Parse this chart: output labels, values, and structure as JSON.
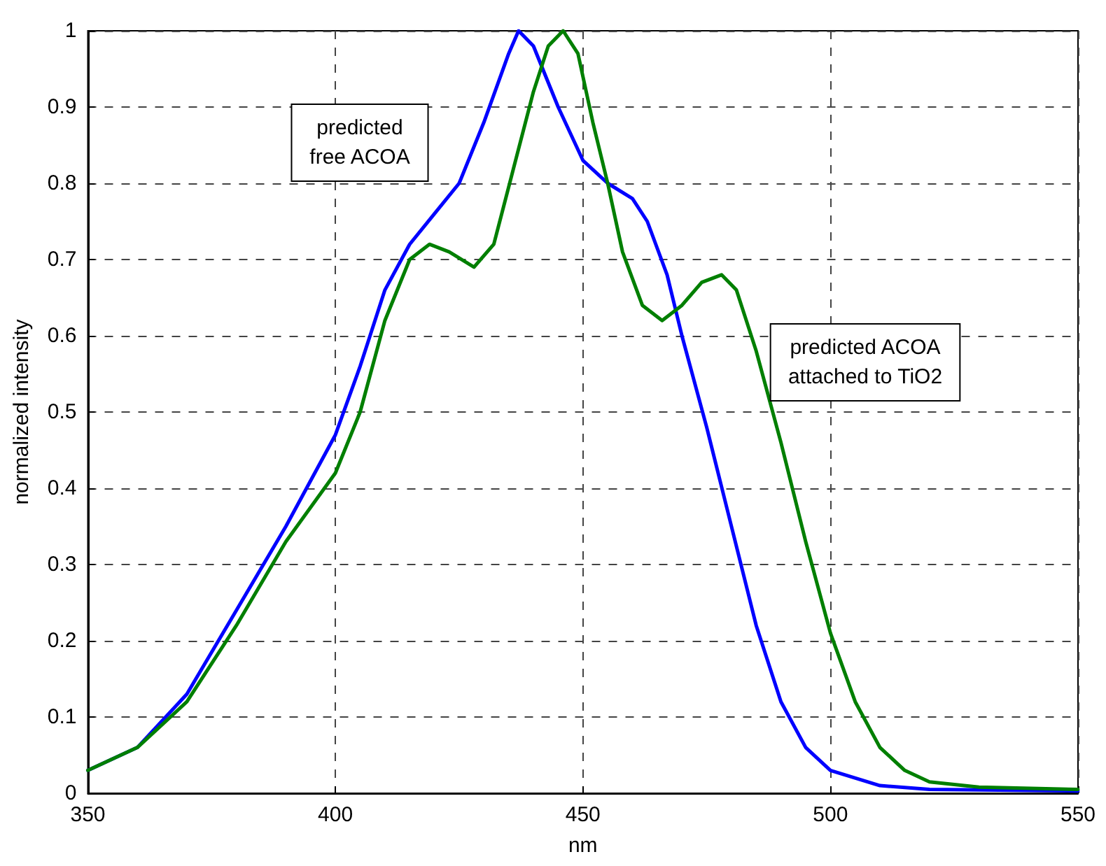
{
  "chart_data": {
    "type": "line",
    "xlabel": "nm",
    "ylabel": "normalized intensity",
    "xlim": [
      350,
      550
    ],
    "xticks": [
      350,
      400,
      450,
      500,
      550
    ],
    "ylim": [
      0,
      1
    ],
    "yticks": [
      0,
      0.1,
      0.2,
      0.3,
      0.4,
      0.5,
      0.6,
      0.7,
      0.8,
      0.9,
      1
    ],
    "grid": true,
    "marker": "none",
    "line_style": "solid",
    "series": [
      {
        "color": "#0000ff",
        "x": [
          350,
          360,
          370,
          380,
          390,
          400,
          405,
          410,
          415,
          420,
          425,
          430,
          435,
          437,
          440,
          445,
          450,
          455,
          460,
          463,
          467,
          470,
          475,
          480,
          485,
          490,
          495,
          500,
          510,
          520,
          550
        ],
        "values": [
          0.03,
          0.06,
          0.13,
          0.24,
          0.35,
          0.47,
          0.56,
          0.66,
          0.72,
          0.76,
          0.8,
          0.88,
          0.97,
          1.0,
          0.98,
          0.9,
          0.83,
          0.8,
          0.78,
          0.75,
          0.68,
          0.6,
          0.48,
          0.35,
          0.22,
          0.12,
          0.06,
          0.03,
          0.01,
          0.005,
          0.003
        ]
      },
      {
        "color": "#007f00",
        "x": [
          350,
          360,
          370,
          380,
          390,
          400,
          405,
          410,
          415,
          419,
          423,
          428,
          432,
          436,
          440,
          443,
          446,
          449,
          452,
          455,
          458,
          462,
          466,
          470,
          474,
          478,
          481,
          485,
          490,
          495,
          500,
          505,
          510,
          515,
          520,
          530,
          550
        ],
        "values": [
          0.03,
          0.06,
          0.12,
          0.22,
          0.33,
          0.42,
          0.5,
          0.62,
          0.7,
          0.72,
          0.71,
          0.69,
          0.72,
          0.82,
          0.92,
          0.98,
          1.0,
          0.97,
          0.88,
          0.8,
          0.71,
          0.64,
          0.62,
          0.64,
          0.67,
          0.68,
          0.66,
          0.58,
          0.46,
          0.33,
          0.21,
          0.12,
          0.06,
          0.03,
          0.015,
          0.008,
          0.005
        ]
      }
    ],
    "annotations": [
      "predicted\nfree ACOA",
      "predicted ACOA\nattached to TiO2"
    ]
  }
}
